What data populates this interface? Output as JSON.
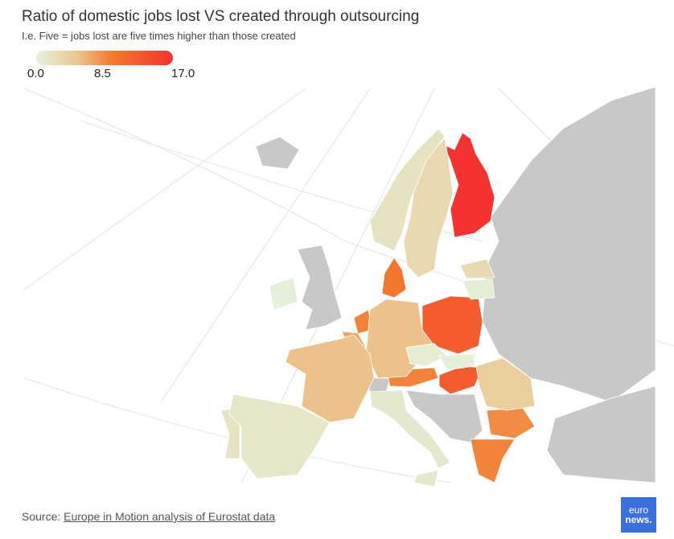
{
  "header": {
    "title": "Ratio of domestic jobs lost VS created through outsourcing",
    "subtitle": "I.e. Five = jobs lost are five times higher than those created"
  },
  "legend": {
    "ticks": [
      "0.0",
      "8.5",
      "17.0"
    ]
  },
  "colors": {
    "nodata": "#c8c8c8",
    "low": "#e3f3df",
    "mid": "#ecc690",
    "high": "#f47a2d",
    "max": "#f4322f"
  },
  "chart_data": {
    "type": "choropleth",
    "title": "Ratio of domestic jobs lost VS created through outsourcing",
    "range": [
      0,
      17
    ],
    "values": {
      "Finland": 17,
      "Poland": 12,
      "Hungary": 12,
      "Denmark": 9,
      "Netherlands": 8,
      "Austria": 8,
      "Greece": 8,
      "Bulgaria": 7.5,
      "Belgium": 6,
      "Germany": 4.5,
      "France": 4.5,
      "Romania": 3.5,
      "Latvia": 2.5,
      "Sweden": 2.5,
      "Norway": 1.5,
      "Portugal": 1.5,
      "Spain": 1.2,
      "Italy": 1,
      "Lithuania": 0.5,
      "Czechia": 0.5,
      "Slovakia": 0.3,
      "Ireland": 0.2
    }
  },
  "footer": {
    "source_label": "Source: ",
    "source_link": "Europe in Motion analysis of Eurostat data",
    "logo_top": "euro",
    "logo_bottom": "news."
  }
}
